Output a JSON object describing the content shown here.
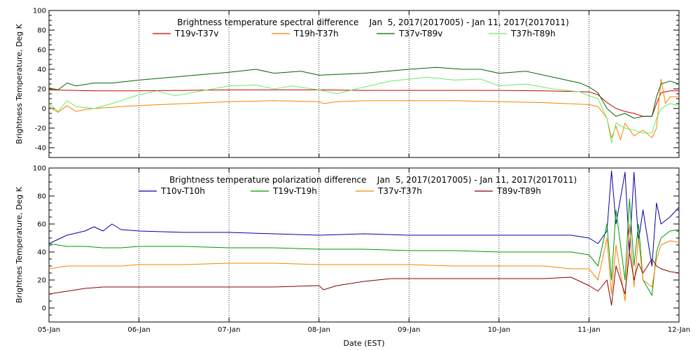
{
  "chart_data": [
    {
      "type": "line",
      "title": "Brightness temperature spectral difference    Jan  5, 2017(2017005) - Jan 11, 2017(2017011)",
      "xlabel": "",
      "ylabel": "Brightness Temperature, Deg K",
      "xlim": [
        0,
        7
      ],
      "ylim": [
        -50,
        100
      ],
      "yticks": [
        -40,
        -20,
        0,
        20,
        40,
        60,
        80,
        100
      ],
      "xticks": [
        0,
        1,
        2,
        3,
        4,
        5,
        6,
        7
      ],
      "xtick_labels": [
        "",
        "",
        "",
        "",
        "",
        "",
        "",
        ""
      ],
      "grid": "vertical dotted at day boundaries",
      "legend": "top, inside plot",
      "series": [
        {
          "name": "T19v-T37v",
          "color": "#cc0000",
          "points": [
            [
              0,
              19
            ],
            [
              0.5,
              18
            ],
            [
              1,
              18
            ],
            [
              1.5,
              18.5
            ],
            [
              2,
              19
            ],
            [
              2.5,
              19
            ],
            [
              3,
              19
            ],
            [
              3.5,
              18.5
            ],
            [
              4,
              18.5
            ],
            [
              4.5,
              18.5
            ],
            [
              5,
              18.5
            ],
            [
              5.5,
              18
            ],
            [
              6,
              17
            ],
            [
              6.1,
              14
            ],
            [
              6.2,
              6
            ],
            [
              6.3,
              0
            ],
            [
              6.4,
              -3
            ],
            [
              6.5,
              -5
            ],
            [
              6.6,
              -8
            ],
            [
              6.7,
              -8
            ],
            [
              6.75,
              5
            ],
            [
              6.8,
              16
            ],
            [
              6.9,
              18
            ],
            [
              7,
              18
            ]
          ]
        },
        {
          "name": "T19h-T37h",
          "color": "#ff8000",
          "points": [
            [
              0,
              2
            ],
            [
              0.1,
              -4
            ],
            [
              0.2,
              3
            ],
            [
              0.3,
              -3
            ],
            [
              0.4,
              -1
            ],
            [
              0.5,
              0
            ],
            [
              0.8,
              2
            ],
            [
              1,
              3
            ],
            [
              1.5,
              5
            ],
            [
              2,
              7
            ],
            [
              2.5,
              8
            ],
            [
              3,
              7
            ],
            [
              3.05,
              5
            ],
            [
              3.2,
              7
            ],
            [
              3.5,
              8
            ],
            [
              4,
              8
            ],
            [
              4.5,
              8
            ],
            [
              5,
              7
            ],
            [
              5.5,
              6
            ],
            [
              6,
              4
            ],
            [
              6.1,
              2
            ],
            [
              6.2,
              -10
            ],
            [
              6.25,
              -30
            ],
            [
              6.3,
              -18
            ],
            [
              6.35,
              -32
            ],
            [
              6.4,
              -15
            ],
            [
              6.5,
              -28
            ],
            [
              6.6,
              -22
            ],
            [
              6.7,
              -30
            ],
            [
              6.75,
              -20
            ],
            [
              6.8,
              30
            ],
            [
              6.85,
              5
            ],
            [
              6.9,
              12
            ],
            [
              7,
              12
            ]
          ]
        },
        {
          "name": "T37v-T89v",
          "color": "#006400",
          "points": [
            [
              0,
              21
            ],
            [
              0.1,
              19
            ],
            [
              0.2,
              26
            ],
            [
              0.3,
              23
            ],
            [
              0.5,
              26
            ],
            [
              0.7,
              26
            ],
            [
              1,
              29
            ],
            [
              1.5,
              33
            ],
            [
              2,
              37
            ],
            [
              2.3,
              40
            ],
            [
              2.5,
              36
            ],
            [
              2.8,
              38
            ],
            [
              3,
              34
            ],
            [
              3.5,
              36
            ],
            [
              4,
              40
            ],
            [
              4.3,
              42
            ],
            [
              4.6,
              40
            ],
            [
              4.8,
              40
            ],
            [
              5,
              36
            ],
            [
              5.3,
              38
            ],
            [
              5.6,
              32
            ],
            [
              5.9,
              26
            ],
            [
              6,
              22
            ],
            [
              6.1,
              16
            ],
            [
              6.2,
              0
            ],
            [
              6.3,
              -8
            ],
            [
              6.4,
              -5
            ],
            [
              6.5,
              -10
            ],
            [
              6.6,
              -8
            ],
            [
              6.7,
              -8
            ],
            [
              6.75,
              12
            ],
            [
              6.8,
              25
            ],
            [
              6.9,
              28
            ],
            [
              7,
              25
            ]
          ]
        },
        {
          "name": "T37h-T89h",
          "color": "#66ee66",
          "points": [
            [
              0,
              5
            ],
            [
              0.1,
              -3
            ],
            [
              0.2,
              8
            ],
            [
              0.3,
              2
            ],
            [
              0.5,
              0
            ],
            [
              0.7,
              5
            ],
            [
              1,
              14
            ],
            [
              1.2,
              18
            ],
            [
              1.4,
              13
            ],
            [
              1.7,
              18
            ],
            [
              2,
              23
            ],
            [
              2.3,
              24
            ],
            [
              2.5,
              20
            ],
            [
              2.7,
              23
            ],
            [
              3,
              19
            ],
            [
              3.2,
              15
            ],
            [
              3.5,
              22
            ],
            [
              3.8,
              28
            ],
            [
              4,
              30
            ],
            [
              4.2,
              32
            ],
            [
              4.5,
              29
            ],
            [
              4.8,
              30
            ],
            [
              5,
              23
            ],
            [
              5.3,
              25
            ],
            [
              5.6,
              20
            ],
            [
              5.9,
              17
            ],
            [
              6,
              13
            ],
            [
              6.1,
              10
            ],
            [
              6.2,
              -10
            ],
            [
              6.25,
              -35
            ],
            [
              6.3,
              -15
            ],
            [
              6.4,
              -20
            ],
            [
              6.5,
              -22
            ],
            [
              6.6,
              -25
            ],
            [
              6.7,
              -25
            ],
            [
              6.75,
              -10
            ],
            [
              6.8,
              0
            ],
            [
              6.9,
              5
            ],
            [
              7,
              3
            ]
          ]
        }
      ]
    },
    {
      "type": "line",
      "title": "Brightness temperature polarization difference    Jan  5, 2017(2017005) - Jan 11, 2017(2017011)",
      "xlabel": "Date (EST)",
      "ylabel": "Brightnes Temperature, Deg K",
      "xlim": [
        0,
        7
      ],
      "ylim": [
        -10,
        100
      ],
      "yticks": [
        0,
        20,
        40,
        60,
        80,
        100
      ],
      "xticks": [
        0,
        1,
        2,
        3,
        4,
        5,
        6,
        7
      ],
      "xtick_labels": [
        "05-Jan",
        "06-Jan",
        "07-Jan",
        "08-Jan",
        "09-Jan",
        "10-Jan",
        "11-Jan",
        "12-Jan"
      ],
      "grid": "vertical dotted at day boundaries",
      "legend": "top, inside plot",
      "series": [
        {
          "name": "T10v-T10h",
          "color": "#0000aa",
          "points": [
            [
              0,
              46
            ],
            [
              0.2,
              52
            ],
            [
              0.4,
              55
            ],
            [
              0.5,
              58
            ],
            [
              0.6,
              55
            ],
            [
              0.7,
              60
            ],
            [
              0.8,
              56
            ],
            [
              1,
              55
            ],
            [
              1.5,
              54
            ],
            [
              2,
              54
            ],
            [
              2.5,
              53
            ],
            [
              3,
              52
            ],
            [
              3.5,
              53
            ],
            [
              4,
              52
            ],
            [
              4.5,
              52
            ],
            [
              5,
              52
            ],
            [
              5.5,
              52
            ],
            [
              5.8,
              52
            ],
            [
              6,
              50
            ],
            [
              6.1,
              46
            ],
            [
              6.2,
              55
            ],
            [
              6.25,
              98
            ],
            [
              6.3,
              60
            ],
            [
              6.4,
              97
            ],
            [
              6.45,
              40
            ],
            [
              6.5,
              97
            ],
            [
              6.55,
              48
            ],
            [
              6.6,
              70
            ],
            [
              6.7,
              30
            ],
            [
              6.75,
              75
            ],
            [
              6.8,
              60
            ],
            [
              6.9,
              65
            ],
            [
              7,
              72
            ]
          ]
        },
        {
          "name": "T19v-T19h",
          "color": "#009900",
          "points": [
            [
              0,
              46
            ],
            [
              0.2,
              44
            ],
            [
              0.4,
              44
            ],
            [
              0.6,
              43
            ],
            [
              0.8,
              43
            ],
            [
              1,
              44
            ],
            [
              1.5,
              44
            ],
            [
              2,
              43
            ],
            [
              2.5,
              43
            ],
            [
              3,
              42
            ],
            [
              3.5,
              42
            ],
            [
              4,
              41
            ],
            [
              4.5,
              41
            ],
            [
              5,
              40
            ],
            [
              5.5,
              40
            ],
            [
              5.8,
              40
            ],
            [
              6,
              38
            ],
            [
              6.1,
              30
            ],
            [
              6.2,
              60
            ],
            [
              6.25,
              20
            ],
            [
              6.3,
              70
            ],
            [
              6.4,
              20
            ],
            [
              6.45,
              78
            ],
            [
              6.5,
              30
            ],
            [
              6.55,
              60
            ],
            [
              6.6,
              20
            ],
            [
              6.7,
              9
            ],
            [
              6.75,
              40
            ],
            [
              6.8,
              50
            ],
            [
              6.9,
              55
            ],
            [
              7,
              56
            ]
          ]
        },
        {
          "name": "T37v-T37h",
          "color": "#ff8000",
          "points": [
            [
              0,
              28
            ],
            [
              0.2,
              30
            ],
            [
              0.4,
              30
            ],
            [
              0.6,
              30
            ],
            [
              0.8,
              30
            ],
            [
              1,
              31
            ],
            [
              1.5,
              31
            ],
            [
              2,
              32
            ],
            [
              2.5,
              32
            ],
            [
              3,
              31
            ],
            [
              3.5,
              31
            ],
            [
              4,
              31
            ],
            [
              4.5,
              30
            ],
            [
              5,
              30
            ],
            [
              5.5,
              30
            ],
            [
              5.8,
              28
            ],
            [
              6,
              28
            ],
            [
              6.1,
              20
            ],
            [
              6.2,
              50
            ],
            [
              6.25,
              10
            ],
            [
              6.3,
              45
            ],
            [
              6.4,
              5
            ],
            [
              6.45,
              60
            ],
            [
              6.5,
              15
            ],
            [
              6.55,
              50
            ],
            [
              6.6,
              20
            ],
            [
              6.7,
              15
            ],
            [
              6.75,
              35
            ],
            [
              6.8,
              45
            ],
            [
              6.9,
              48
            ],
            [
              7,
              47
            ]
          ]
        },
        {
          "name": "T89v-T89h",
          "color": "#880000",
          "points": [
            [
              0,
              10
            ],
            [
              0.2,
              12
            ],
            [
              0.4,
              14
            ],
            [
              0.6,
              15
            ],
            [
              0.8,
              15
            ],
            [
              1,
              15
            ],
            [
              1.5,
              15
            ],
            [
              2,
              15
            ],
            [
              2.5,
              15
            ],
            [
              3,
              16
            ],
            [
              3.05,
              13
            ],
            [
              3.2,
              16
            ],
            [
              3.5,
              19
            ],
            [
              3.8,
              21
            ],
            [
              4,
              21
            ],
            [
              4.5,
              21
            ],
            [
              5,
              21
            ],
            [
              5.5,
              21
            ],
            [
              5.8,
              22
            ],
            [
              6,
              16
            ],
            [
              6.1,
              12
            ],
            [
              6.2,
              20
            ],
            [
              6.25,
              2
            ],
            [
              6.3,
              30
            ],
            [
              6.4,
              10
            ],
            [
              6.45,
              40
            ],
            [
              6.5,
              20
            ],
            [
              6.55,
              32
            ],
            [
              6.6,
              25
            ],
            [
              6.7,
              35
            ],
            [
              6.75,
              30
            ],
            [
              6.8,
              28
            ],
            [
              6.9,
              26
            ],
            [
              7,
              25
            ]
          ]
        }
      ]
    }
  ]
}
